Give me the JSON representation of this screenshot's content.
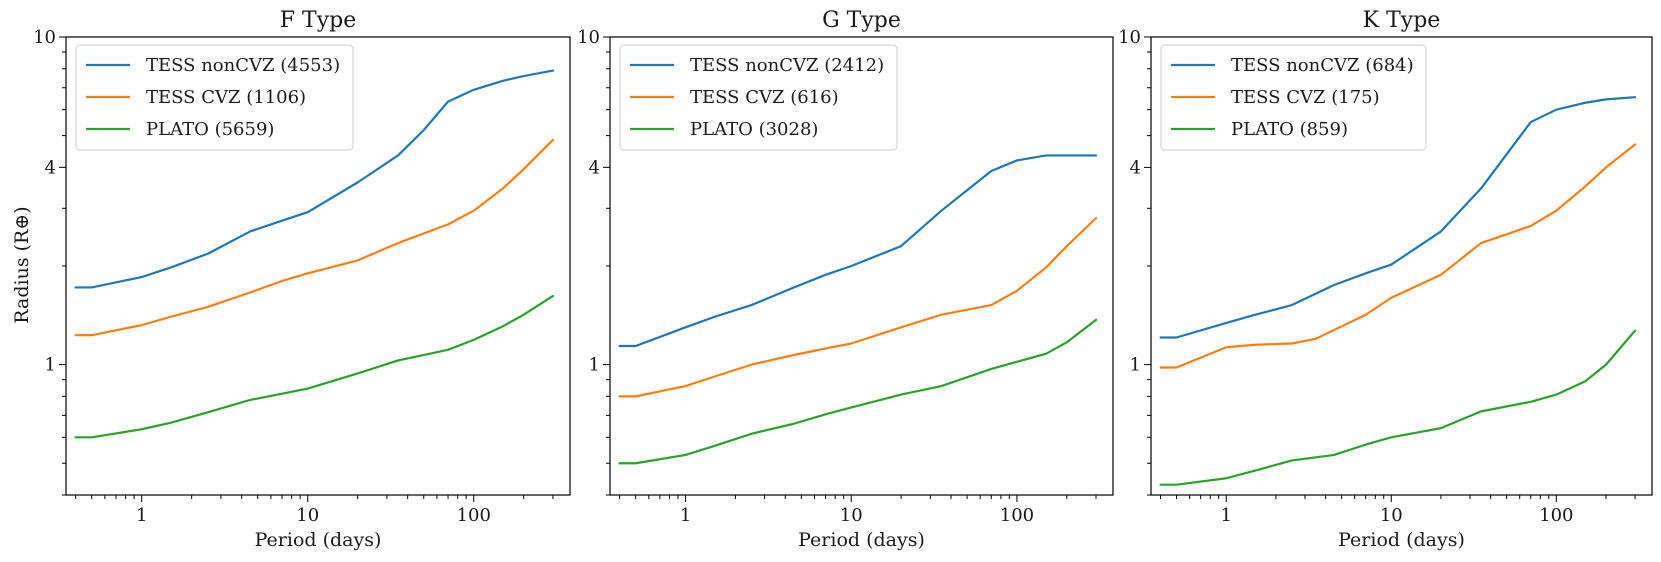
{
  "chart_data": [
    {
      "type": "line",
      "title": "F Type",
      "xlabel": "Period (days)",
      "ylabel": "Radius (R⊕)",
      "xscale": "log",
      "yscale": "log",
      "xlim": [
        0.35,
        380
      ],
      "ylim": [
        0.4,
        10
      ],
      "xticks": [
        {
          "v": 1,
          "label": "1"
        },
        {
          "v": 10,
          "label": "10"
        },
        {
          "v": 100,
          "label": "100"
        }
      ],
      "yticks": [
        {
          "v": 1,
          "label": "1"
        },
        {
          "v": 4,
          "label": "4"
        },
        {
          "v": 10,
          "label": "10"
        }
      ],
      "legend": "top-left",
      "series": [
        {
          "name": "TESS nonCVZ (4553)",
          "color": "#1f77b4",
          "x": [
            0.4,
            0.5,
            1,
            1.5,
            2.5,
            4.5,
            7,
            10,
            20,
            35,
            50,
            70,
            100,
            150,
            200,
            300
          ],
          "y": [
            1.72,
            1.72,
            1.85,
            1.98,
            2.18,
            2.55,
            2.75,
            2.92,
            3.6,
            4.35,
            5.2,
            6.35,
            6.9,
            7.35,
            7.6,
            7.9
          ]
        },
        {
          "name": "TESS CVZ (1106)",
          "color": "#ff7f0e",
          "x": [
            0.4,
            0.5,
            1,
            1.5,
            2.5,
            4.5,
            7,
            10,
            20,
            35,
            70,
            100,
            150,
            200,
            300
          ],
          "y": [
            1.23,
            1.23,
            1.32,
            1.4,
            1.5,
            1.66,
            1.8,
            1.9,
            2.08,
            2.35,
            2.68,
            2.95,
            3.45,
            3.95,
            4.85
          ]
        },
        {
          "name": "PLATO (5659)",
          "color": "#2ca02c",
          "x": [
            0.4,
            0.5,
            1,
            1.5,
            2.5,
            4.5,
            7,
            10,
            20,
            35,
            70,
            100,
            150,
            200,
            300
          ],
          "y": [
            0.6,
            0.6,
            0.635,
            0.665,
            0.715,
            0.78,
            0.815,
            0.845,
            0.94,
            1.03,
            1.11,
            1.19,
            1.31,
            1.42,
            1.62
          ]
        }
      ]
    },
    {
      "type": "line",
      "title": "G Type",
      "xlabel": "Period (days)",
      "ylabel": "",
      "xscale": "log",
      "yscale": "log",
      "xlim": [
        0.35,
        380
      ],
      "ylim": [
        0.4,
        10
      ],
      "xticks": [
        {
          "v": 1,
          "label": "1"
        },
        {
          "v": 10,
          "label": "10"
        },
        {
          "v": 100,
          "label": "100"
        }
      ],
      "yticks": [
        {
          "v": 1,
          "label": "1"
        },
        {
          "v": 4,
          "label": "4"
        },
        {
          "v": 10,
          "label": "10"
        }
      ],
      "legend": "top-left",
      "series": [
        {
          "name": "TESS nonCVZ (2412)",
          "color": "#1f77b4",
          "x": [
            0.4,
            0.5,
            1,
            1.5,
            2.5,
            4.5,
            7,
            10,
            20,
            35,
            70,
            100,
            150,
            200,
            300
          ],
          "y": [
            1.14,
            1.14,
            1.3,
            1.4,
            1.52,
            1.72,
            1.88,
            2.0,
            2.3,
            2.95,
            3.9,
            4.2,
            4.35,
            4.35,
            4.35
          ]
        },
        {
          "name": "TESS CVZ (616)",
          "color": "#ff7f0e",
          "x": [
            0.4,
            0.5,
            1,
            1.5,
            2.5,
            4.5,
            7,
            10,
            20,
            35,
            70,
            100,
            150,
            200,
            300
          ],
          "y": [
            0.8,
            0.8,
            0.86,
            0.92,
            1.0,
            1.07,
            1.12,
            1.16,
            1.3,
            1.42,
            1.52,
            1.68,
            1.98,
            2.3,
            2.8
          ]
        },
        {
          "name": "PLATO (3028)",
          "color": "#2ca02c",
          "x": [
            0.4,
            0.5,
            1,
            1.5,
            2.5,
            4.5,
            7,
            10,
            20,
            35,
            70,
            100,
            150,
            200,
            300
          ],
          "y": [
            0.5,
            0.5,
            0.53,
            0.565,
            0.615,
            0.66,
            0.705,
            0.74,
            0.81,
            0.86,
            0.97,
            1.02,
            1.08,
            1.17,
            1.37
          ]
        }
      ]
    },
    {
      "type": "line",
      "title": "K Type",
      "xlabel": "Period (days)",
      "ylabel": "",
      "xscale": "log",
      "yscale": "log",
      "xlim": [
        0.35,
        380
      ],
      "ylim": [
        0.4,
        10
      ],
      "xticks": [
        {
          "v": 1,
          "label": "1"
        },
        {
          "v": 10,
          "label": "10"
        },
        {
          "v": 100,
          "label": "100"
        }
      ],
      "yticks": [
        {
          "v": 1,
          "label": "1"
        },
        {
          "v": 4,
          "label": "4"
        },
        {
          "v": 10,
          "label": "10"
        }
      ],
      "legend": "top-left",
      "series": [
        {
          "name": "TESS nonCVZ (684)",
          "color": "#1f77b4",
          "x": [
            0.4,
            0.5,
            1,
            1.5,
            2.5,
            4.5,
            7,
            10,
            20,
            35,
            70,
            100,
            150,
            200,
            300
          ],
          "y": [
            1.21,
            1.21,
            1.34,
            1.42,
            1.52,
            1.75,
            1.9,
            2.02,
            2.55,
            3.45,
            5.5,
            6.0,
            6.3,
            6.45,
            6.55
          ]
        },
        {
          "name": "TESS CVZ (175)",
          "color": "#ff7f0e",
          "x": [
            0.4,
            0.5,
            1,
            1.5,
            2.5,
            3.5,
            7,
            10,
            20,
            35,
            70,
            100,
            150,
            200,
            300
          ],
          "y": [
            0.98,
            0.98,
            1.13,
            1.15,
            1.16,
            1.2,
            1.42,
            1.6,
            1.88,
            2.35,
            2.65,
            2.95,
            3.5,
            4.0,
            4.7
          ]
        },
        {
          "name": "PLATO (859)",
          "color": "#2ca02c",
          "x": [
            0.4,
            0.5,
            1,
            1.5,
            2.5,
            4.5,
            7,
            10,
            20,
            35,
            70,
            100,
            150,
            200,
            300
          ],
          "y": [
            0.43,
            0.43,
            0.45,
            0.475,
            0.51,
            0.53,
            0.57,
            0.6,
            0.64,
            0.72,
            0.77,
            0.81,
            0.89,
            1.0,
            1.27
          ]
        }
      ]
    }
  ]
}
